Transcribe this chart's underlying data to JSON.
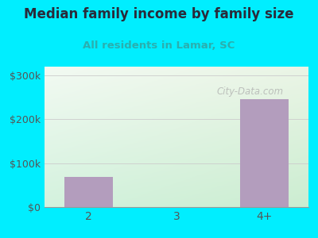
{
  "title": "Median family income by family size",
  "subtitle": "All residents in Lamar, SC",
  "categories": [
    "2",
    "3",
    "4+"
  ],
  "values": [
    68000,
    0,
    245000
  ],
  "bar_color": "#b39dbd",
  "title_color": "#2a2a3a",
  "subtitle_color": "#2aafaf",
  "outer_bg": "#00eeff",
  "yticks": [
    0,
    100000,
    200000,
    300000
  ],
  "ytick_labels": [
    "$0",
    "$100k",
    "$200k",
    "$300k"
  ],
  "ylim": [
    0,
    320000
  ],
  "watermark": "City-Data.com",
  "bar_width": 0.55
}
